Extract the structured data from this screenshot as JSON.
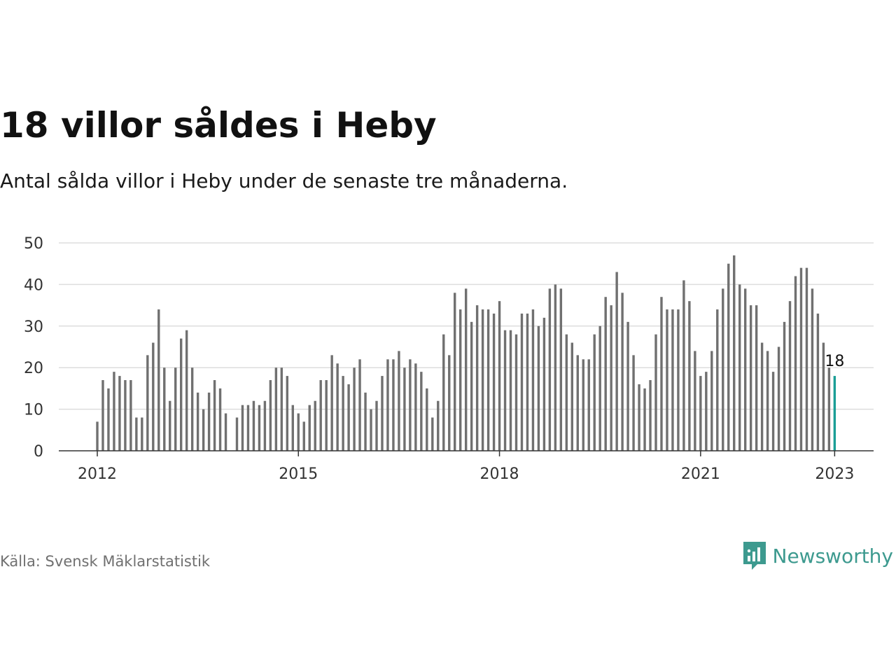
{
  "title": "18 villor såldes i Heby",
  "subtitle": "Antal sålda villor i Heby under de senaste tre månaderna.",
  "source": "Källa: Svensk Mäklarstatistik",
  "brand": {
    "name": "Newsworthy",
    "icon": "newsworthy-logo-icon"
  },
  "colors": {
    "bar": "#707070",
    "highlight": "#1a9e96",
    "grid": "#dddddd",
    "axis": "#333333",
    "brand": "#3d9a8f"
  },
  "chart_data": {
    "type": "bar",
    "ylim": [
      0,
      50
    ],
    "yticks": [
      0,
      10,
      20,
      30,
      40,
      50
    ],
    "xticks": [
      {
        "label": "2012",
        "index": 0
      },
      {
        "label": "2015",
        "index": 36
      },
      {
        "label": "2018",
        "index": 72
      },
      {
        "label": "2021",
        "index": 108
      },
      {
        "label": "2023",
        "index": 132
      }
    ],
    "grid": true,
    "annotation": {
      "index": 132,
      "label": "18"
    },
    "values": [
      7,
      17,
      15,
      19,
      18,
      17,
      17,
      8,
      8,
      23,
      26,
      34,
      20,
      12,
      20,
      27,
      29,
      20,
      14,
      10,
      14,
      17,
      15,
      9,
      0,
      8,
      11,
      11,
      12,
      11,
      12,
      17,
      20,
      20,
      18,
      11,
      9,
      7,
      11,
      12,
      17,
      17,
      23,
      21,
      18,
      16,
      20,
      22,
      14,
      10,
      12,
      18,
      22,
      22,
      24,
      20,
      22,
      21,
      19,
      15,
      8,
      12,
      28,
      23,
      38,
      34,
      39,
      31,
      35,
      34,
      34,
      33,
      36,
      29,
      29,
      28,
      33,
      33,
      34,
      30,
      32,
      39,
      40,
      39,
      28,
      26,
      23,
      22,
      22,
      28,
      30,
      37,
      35,
      43,
      38,
      31,
      23,
      16,
      15,
      17,
      28,
      37,
      34,
      34,
      34,
      41,
      36,
      24,
      18,
      19,
      24,
      34,
      39,
      45,
      47,
      40,
      39,
      35,
      35,
      26,
      24,
      19,
      25,
      31,
      36,
      42,
      44,
      44,
      39,
      33,
      26,
      20,
      18
    ]
  }
}
